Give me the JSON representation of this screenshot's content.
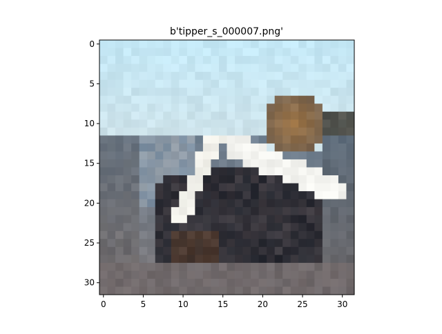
{
  "figure": {
    "title": "b'tipper_s_000007.png'"
  },
  "image": {
    "grid_size": [
      32,
      32
    ],
    "description_colors": {
      "sky": "#c8e6f0",
      "ground": "#6e6a6c",
      "dark_machinery": "#2a2c33",
      "highlight": "#f2f2ee",
      "rust": "#9a7040"
    }
  },
  "axes": {
    "x_ticks": [
      "0",
      "5",
      "10",
      "15",
      "20",
      "25",
      "30"
    ],
    "y_ticks": [
      "0",
      "5",
      "10",
      "15",
      "20",
      "25",
      "30"
    ],
    "x_tick_values": [
      0,
      5,
      10,
      15,
      20,
      25,
      30
    ],
    "y_tick_values": [
      0,
      5,
      10,
      15,
      20,
      25,
      30
    ],
    "xlim": [
      -0.5,
      31.5
    ],
    "ylim": [
      31.5,
      -0.5
    ]
  }
}
